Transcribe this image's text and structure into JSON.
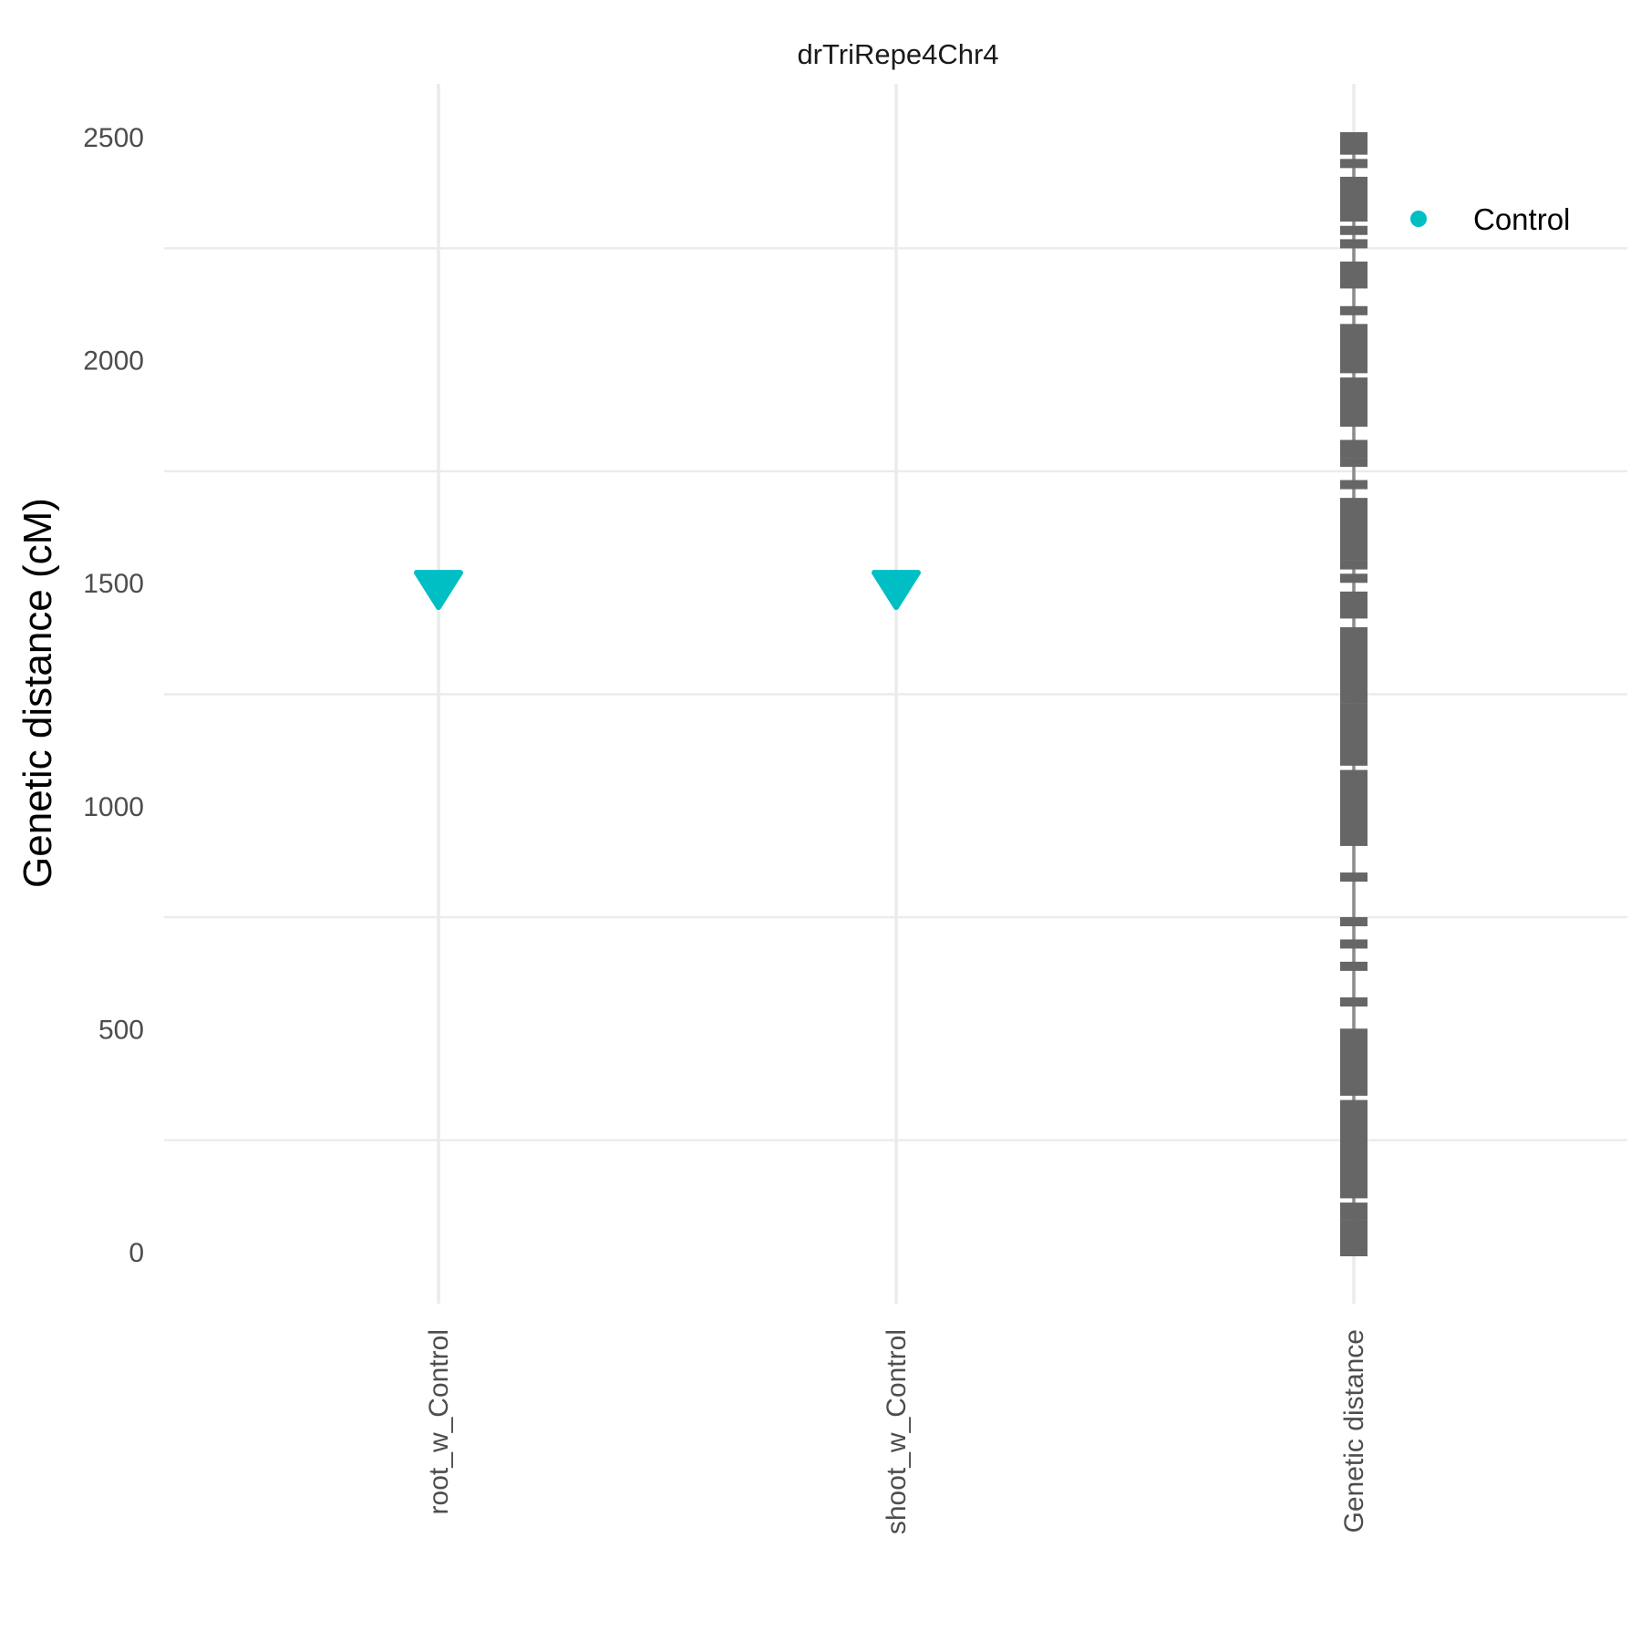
{
  "chart_data": {
    "type": "scatter",
    "title": "drTriRepe4Chr4",
    "ylabel": "Genetic distance (cM)",
    "xlabel": "",
    "ylim": [
      -110,
      2610
    ],
    "yticks": [
      0,
      500,
      1000,
      1500,
      2000,
      2500
    ],
    "categories": [
      "root_w_Control",
      "shoot_w_Control",
      "Genetic distance"
    ],
    "grid": true,
    "legend": {
      "position": "top-right",
      "entries": [
        {
          "name": "Control",
          "color": "#00bfc4",
          "shape": "circle"
        }
      ]
    },
    "series": [
      {
        "name": "Control",
        "marker": "triangle-down",
        "color": "#00bfc4",
        "points": [
          {
            "category": "root_w_Control",
            "y": 1490
          },
          {
            "category": "shoot_w_Control",
            "y": 1490
          }
        ]
      }
    ],
    "markers": {
      "category": "Genetic distance",
      "color": "#666666",
      "positions": [
        0,
        10,
        20,
        30,
        40,
        50,
        60,
        80,
        100,
        130,
        140,
        150,
        160,
        170,
        180,
        190,
        200,
        210,
        220,
        230,
        240,
        250,
        260,
        270,
        280,
        290,
        300,
        310,
        320,
        330,
        360,
        370,
        380,
        390,
        400,
        420,
        440,
        450,
        460,
        470,
        480,
        490,
        560,
        640,
        690,
        740,
        840,
        920,
        930,
        940,
        950,
        960,
        970,
        980,
        990,
        1000,
        1010,
        1020,
        1030,
        1040,
        1050,
        1060,
        1070,
        1100,
        1110,
        1120,
        1130,
        1140,
        1150,
        1160,
        1170,
        1180,
        1190,
        1210,
        1220,
        1240,
        1250,
        1260,
        1270,
        1280,
        1290,
        1300,
        1310,
        1320,
        1330,
        1340,
        1350,
        1360,
        1370,
        1380,
        1390,
        1430,
        1440,
        1450,
        1460,
        1470,
        1510,
        1540,
        1560,
        1570,
        1580,
        1590,
        1600,
        1610,
        1620,
        1630,
        1640,
        1650,
        1660,
        1670,
        1680,
        1720,
        1770,
        1790,
        1810,
        1860,
        1870,
        1880,
        1890,
        1900,
        1910,
        1920,
        1930,
        1940,
        1950,
        1980,
        1990,
        2000,
        2010,
        2020,
        2030,
        2040,
        2050,
        2060,
        2070,
        2110,
        2170,
        2180,
        2190,
        2200,
        2210,
        2260,
        2290,
        2320,
        2340,
        2350,
        2360,
        2370,
        2380,
        2390,
        2400,
        2440,
        2470,
        2480,
        2490,
        2500
      ]
    }
  }
}
